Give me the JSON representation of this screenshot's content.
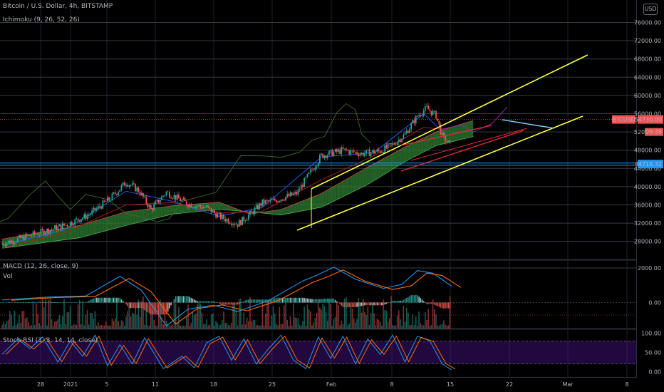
{
  "header": {
    "title": "Bitcoin / U.S. Dollar, 4h, BITSTAMP",
    "ichimoku": "Ichimoku (9, 26, 52, 26)",
    "macd": "MACD (12, 26, close, 9)",
    "vol": "Vol",
    "stoch": "Stoch RSI (3, 3, 14, 14, close)",
    "currency": "USD"
  },
  "colors": {
    "up": "#26a69a",
    "down": "#ef5350",
    "channel": "#ffff3b",
    "wedge": "#e0283c",
    "blue": "#2196f3",
    "cloud_bull": "#2e7d32",
    "cloud_bear": "#8b2f2f"
  },
  "labels": {
    "pair": "BTCUSD",
    "price": "54730.00",
    "countdown": "09:38",
    "level": "44718.32"
  },
  "chart_data": {
    "type": "candlestick",
    "price_axis": {
      "ticks": [
        76000,
        72000,
        68000,
        64000,
        60000,
        56000,
        52000,
        48000,
        44000,
        40000,
        36000,
        32000,
        28000
      ],
      "labels": [
        "76000.00",
        "72000.00",
        "68000.00",
        "64000.00",
        "60000.00",
        "56000.00",
        "52000.00",
        "48000.00",
        "44000.00",
        "40000.00",
        "36000.00",
        "32000.00",
        "28000.00"
      ]
    },
    "time_axis": {
      "labels": [
        "28",
        "2021",
        "5",
        "11",
        "18",
        "25",
        "Feb",
        "8",
        "15",
        "22",
        "Mar",
        "8"
      ]
    },
    "current_price": 54730,
    "horizontal_level": 44718.32,
    "close_path": [
      [
        0,
        27500
      ],
      [
        10,
        29500
      ],
      [
        20,
        31500
      ],
      [
        28,
        33800
      ],
      [
        35,
        37500
      ],
      [
        40,
        41000
      ],
      [
        44,
        39200
      ],
      [
        48,
        35000
      ],
      [
        53,
        38800
      ],
      [
        60,
        36200
      ],
      [
        66,
        35400
      ],
      [
        70,
        33500
      ],
      [
        76,
        31800
      ],
      [
        80,
        34000
      ],
      [
        84,
        36500
      ],
      [
        87,
        36800
      ],
      [
        95,
        38500
      ],
      [
        103,
        46800
      ],
      [
        110,
        48000
      ],
      [
        116,
        47200
      ],
      [
        122,
        47800
      ],
      [
        126,
        49200
      ],
      [
        130,
        51500
      ],
      [
        134,
        55500
      ],
      [
        137,
        57200
      ],
      [
        140,
        55600
      ],
      [
        142,
        51000
      ],
      [
        145,
        48800
      ]
    ],
    "ichimoku_tenkan_path": [
      [
        0,
        27200
      ],
      [
        20,
        30500
      ],
      [
        40,
        39000
      ],
      [
        55,
        36800
      ],
      [
        70,
        33500
      ],
      [
        84,
        35500
      ],
      [
        103,
        46500
      ],
      [
        120,
        47500
      ],
      [
        136,
        56000
      ],
      [
        143,
        51500
      ]
    ],
    "ichimoku_kijun_path": [
      [
        0,
        26500
      ],
      [
        20,
        29800
      ],
      [
        40,
        36000
      ],
      [
        55,
        36500
      ],
      [
        70,
        34200
      ],
      [
        84,
        34600
      ],
      [
        103,
        41500
      ],
      [
        120,
        46800
      ],
      [
        136,
        53000
      ],
      [
        143,
        52500
      ]
    ],
    "cloud_path": [
      [
        0,
        26500,
        28500
      ],
      [
        25,
        28800,
        31500
      ],
      [
        40,
        31500,
        34500
      ],
      [
        55,
        34000,
        35800
      ],
      [
        70,
        35000,
        36600
      ],
      [
        80,
        34500,
        34000
      ],
      [
        90,
        33800,
        35000
      ],
      [
        103,
        35500,
        38500
      ],
      [
        118,
        40500,
        44300
      ],
      [
        130,
        45500,
        48700
      ],
      [
        140,
        49000,
        52000
      ],
      [
        152,
        51000,
        54500
      ]
    ],
    "macd_axis": {
      "ticks": [
        2000,
        0
      ],
      "labels": [
        "2000.00",
        "0.00"
      ]
    },
    "macd_path": [
      [
        0,
        150
      ],
      [
        15,
        320
      ],
      [
        27,
        380
      ],
      [
        38,
        1520
      ],
      [
        45,
        700
      ],
      [
        53,
        -1350
      ],
      [
        60,
        -380
      ],
      [
        68,
        -150
      ],
      [
        76,
        -520
      ],
      [
        86,
        120
      ],
      [
        97,
        1250
      ],
      [
        102,
        1620
      ],
      [
        107,
        2050
      ],
      [
        114,
        1350
      ],
      [
        123,
        820
      ],
      [
        129,
        1050
      ],
      [
        134,
        1850
      ],
      [
        139,
        1700
      ],
      [
        145,
        950
      ]
    ],
    "volume": {
      "mode": "histogram"
    },
    "stoch_axis": {
      "ticks": [
        100,
        50,
        0
      ],
      "labels": [
        "100.00",
        "50.00",
        "0.00"
      ],
      "upper_band": 80,
      "lower_band": 20
    },
    "stoch_path": [
      [
        0,
        45
      ],
      [
        5,
        85
      ],
      [
        9,
        60
      ],
      [
        13,
        90
      ],
      [
        18,
        25
      ],
      [
        22,
        80
      ],
      [
        26,
        40
      ],
      [
        30,
        95
      ],
      [
        34,
        15
      ],
      [
        38,
        70
      ],
      [
        42,
        20
      ],
      [
        46,
        88
      ],
      [
        52,
        8
      ],
      [
        58,
        40
      ],
      [
        62,
        10
      ],
      [
        66,
        75
      ],
      [
        70,
        92
      ],
      [
        74,
        30
      ],
      [
        78,
        85
      ],
      [
        82,
        20
      ],
      [
        86,
        60
      ],
      [
        90,
        95
      ],
      [
        94,
        30
      ],
      [
        98,
        8
      ],
      [
        102,
        90
      ],
      [
        106,
        35
      ],
      [
        110,
        92
      ],
      [
        114,
        20
      ],
      [
        118,
        85
      ],
      [
        122,
        45
      ],
      [
        126,
        95
      ],
      [
        130,
        25
      ],
      [
        134,
        92
      ],
      [
        138,
        80
      ],
      [
        142,
        20
      ],
      [
        145,
        5
      ]
    ]
  }
}
